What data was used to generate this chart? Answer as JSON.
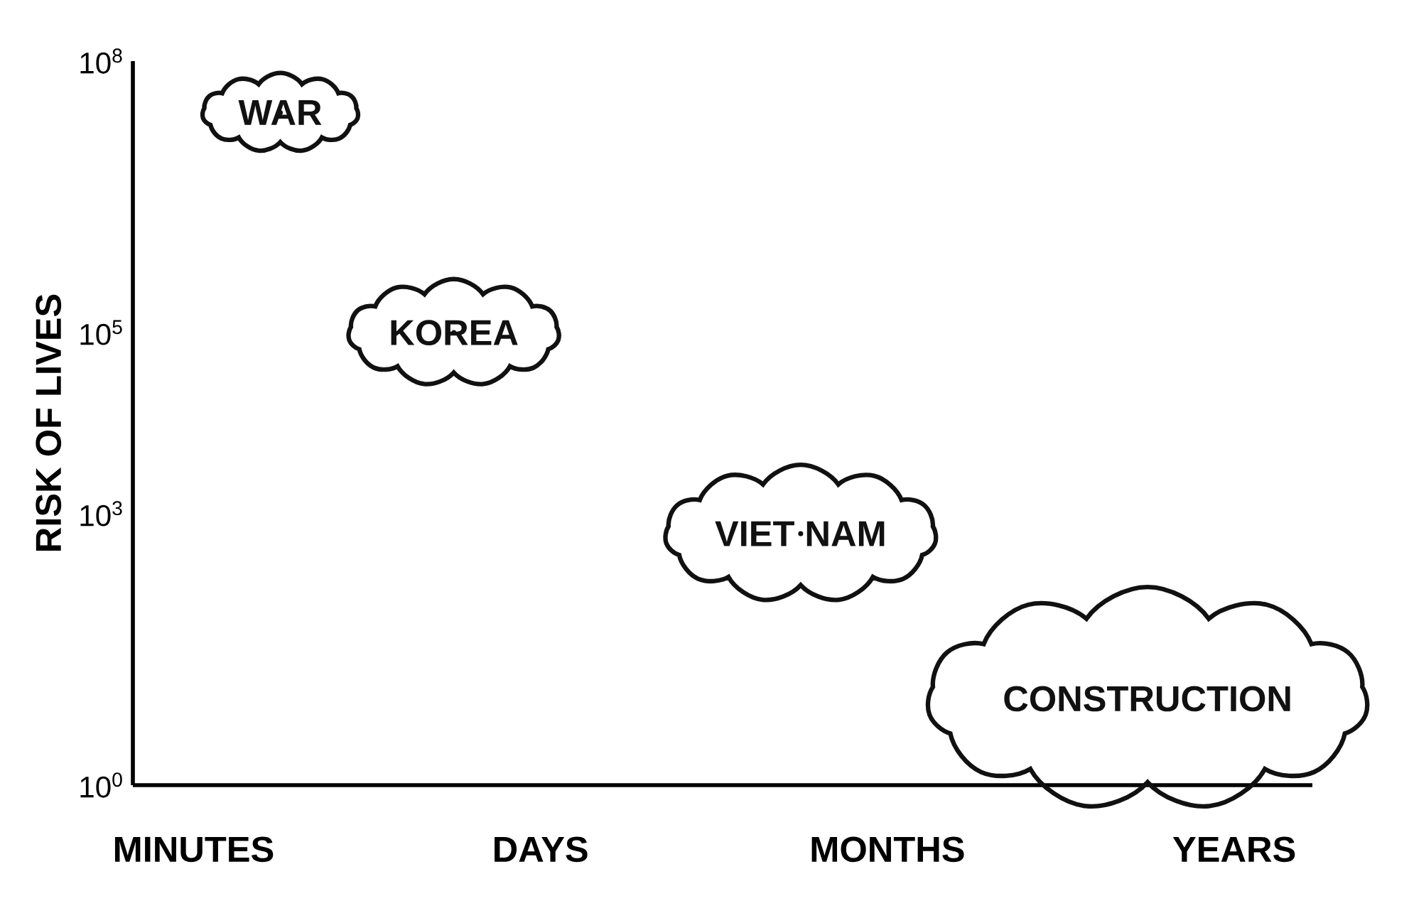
{
  "chart_data": {
    "type": "scatter",
    "ylabel": "RISK OF LIVES",
    "log": "y",
    "categories": [
      "MINUTES",
      null,
      null,
      null,
      "DAYS",
      null,
      null,
      null,
      "MONTHS",
      null,
      null,
      null,
      "YEARS"
    ],
    "ylim": [
      1,
      100000000
    ],
    "yticks": [
      {
        "value": 1,
        "label": "10$^{0}$"
      },
      {
        "value": 1000,
        "label": "10$^{3}$"
      },
      {
        "value": 100000,
        "label": "10$^{5}$"
      },
      {
        "value": 100000000,
        "label": "10$^{8}$"
      }
    ],
    "series": [
      {
        "color": "#111111",
        "values": [
          null,
          27000000,
          null,
          100000,
          null,
          null,
          null,
          600,
          null,
          null,
          null,
          9,
          null
        ],
        "value_labels": [
          null,
          "WAR",
          null,
          "KOREA",
          null,
          null,
          null,
          "VIET NAM",
          null,
          null,
          null,
          "CONSTRUCTION",
          null
        ]
      }
    ]
  }
}
